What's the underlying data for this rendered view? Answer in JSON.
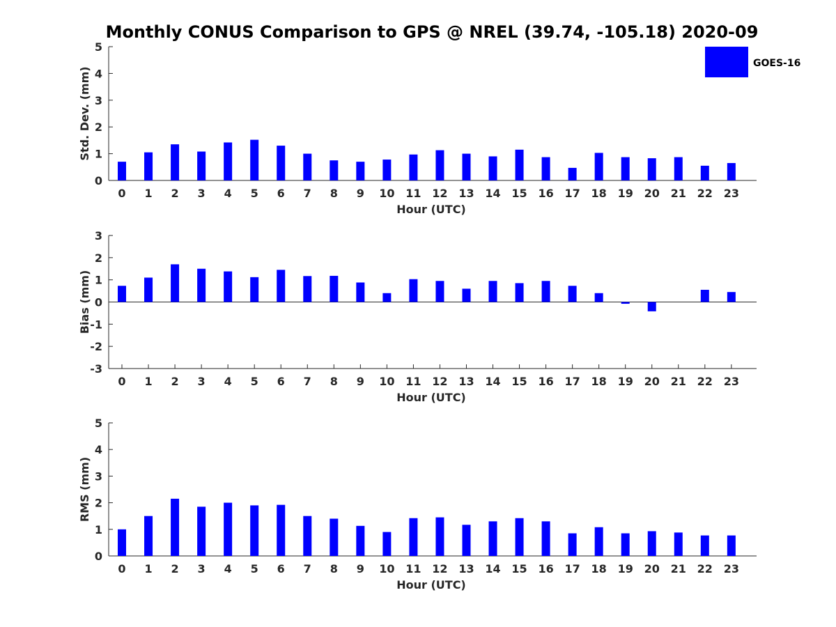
{
  "chart_data": [
    {
      "type": "bar",
      "title": "Monthly CONUS Comparison to GPS @ NREL (39.74, -105.18) 2020-09",
      "xlabel": "Hour (UTC)",
      "ylabel": "Std. Dev. (mm)",
      "ylim": [
        0,
        5
      ],
      "yticks": [
        0,
        1,
        2,
        3,
        4,
        5
      ],
      "categories": [
        "0",
        "1",
        "2",
        "3",
        "4",
        "5",
        "6",
        "7",
        "8",
        "9",
        "10",
        "11",
        "12",
        "13",
        "14",
        "15",
        "16",
        "17",
        "18",
        "19",
        "20",
        "21",
        "22",
        "23"
      ],
      "series": [
        {
          "name": "GOES-16",
          "color": "#0000ff",
          "values": [
            0.7,
            1.05,
            1.35,
            1.08,
            1.42,
            1.52,
            1.3,
            1.0,
            0.75,
            0.7,
            0.78,
            0.97,
            1.13,
            1.0,
            0.9,
            1.15,
            0.87,
            0.47,
            1.03,
            0.87,
            0.83,
            0.87,
            0.55,
            0.65
          ]
        }
      ],
      "legend": {
        "placement": "top-right",
        "entries": [
          "GOES-16"
        ]
      },
      "grid": false
    },
    {
      "type": "bar",
      "xlabel": "Hour (UTC)",
      "ylabel": "Bias (mm)",
      "ylim": [
        -3,
        3
      ],
      "yticks": [
        -3,
        -2,
        -1,
        0,
        1,
        2,
        3
      ],
      "categories": [
        "0",
        "1",
        "2",
        "3",
        "4",
        "5",
        "6",
        "7",
        "8",
        "9",
        "10",
        "11",
        "12",
        "13",
        "14",
        "15",
        "16",
        "17",
        "18",
        "19",
        "20",
        "21",
        "22",
        "23"
      ],
      "series": [
        {
          "name": "GOES-16",
          "color": "#0000ff",
          "values": [
            0.73,
            1.1,
            1.7,
            1.5,
            1.38,
            1.12,
            1.45,
            1.17,
            1.18,
            0.88,
            0.4,
            1.03,
            0.95,
            0.6,
            0.95,
            0.85,
            0.95,
            0.73,
            0.4,
            -0.08,
            -0.42,
            0.0,
            0.55,
            0.45
          ]
        }
      ],
      "grid": false
    },
    {
      "type": "bar",
      "xlabel": "Hour (UTC)",
      "ylabel": "RMS (mm)",
      "ylim": [
        0,
        5
      ],
      "yticks": [
        0,
        1,
        2,
        3,
        4,
        5
      ],
      "categories": [
        "0",
        "1",
        "2",
        "3",
        "4",
        "5",
        "6",
        "7",
        "8",
        "9",
        "10",
        "11",
        "12",
        "13",
        "14",
        "15",
        "16",
        "17",
        "18",
        "19",
        "20",
        "21",
        "22",
        "23"
      ],
      "series": [
        {
          "name": "GOES-16",
          "color": "#0000ff",
          "values": [
            1.0,
            1.5,
            2.15,
            1.85,
            2.0,
            1.9,
            1.92,
            1.5,
            1.4,
            1.13,
            0.9,
            1.42,
            1.45,
            1.17,
            1.3,
            1.42,
            1.3,
            0.85,
            1.08,
            0.85,
            0.93,
            0.88,
            0.77,
            0.77
          ]
        }
      ],
      "grid": false
    }
  ]
}
